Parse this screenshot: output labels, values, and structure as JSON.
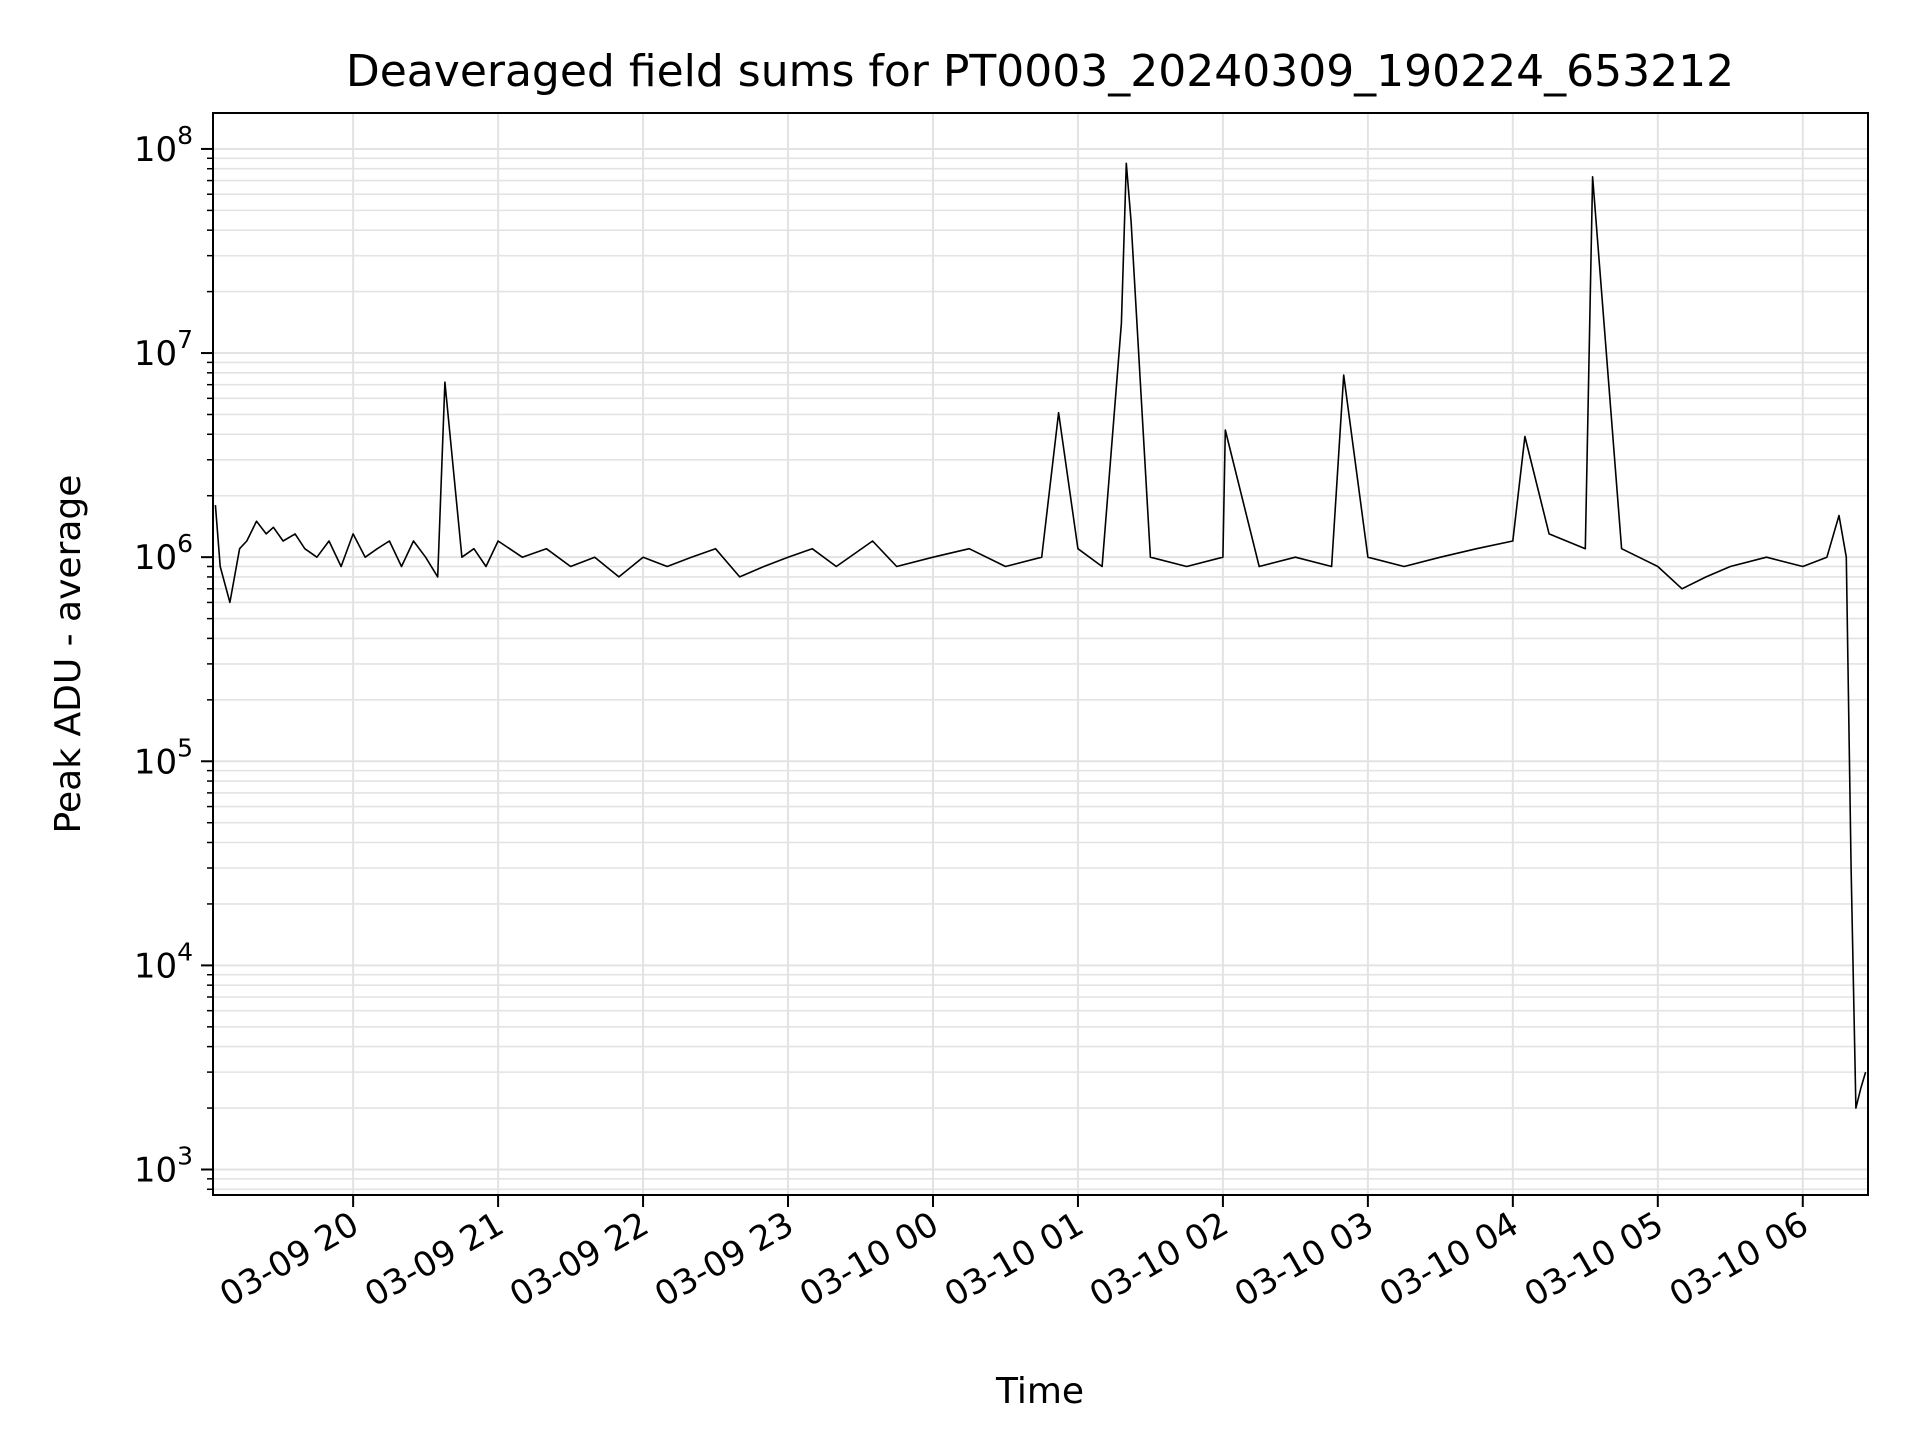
{
  "chart_data": {
    "type": "line",
    "title": "Deaveraged field sums for PT0003_20240309_190224_653212",
    "xlabel": "Time",
    "ylabel": "Peak ADU - average",
    "yscale": "log",
    "grid": true,
    "line_color": "#000000",
    "xlim": [
      "2024-03-09 19:02",
      "2024-03-10 06:27"
    ],
    "ylim": [
      750,
      150000000
    ],
    "x_ticks": [
      {
        "label": "03-09 20",
        "value": "2024-03-09 20:00"
      },
      {
        "label": "03-09 21",
        "value": "2024-03-09 21:00"
      },
      {
        "label": "03-09 22",
        "value": "2024-03-09 22:00"
      },
      {
        "label": "03-09 23",
        "value": "2024-03-09 23:00"
      },
      {
        "label": "03-10 00",
        "value": "2024-03-10 00:00"
      },
      {
        "label": "03-10 01",
        "value": "2024-03-10 01:00"
      },
      {
        "label": "03-10 02",
        "value": "2024-03-10 02:00"
      },
      {
        "label": "03-10 03",
        "value": "2024-03-10 03:00"
      },
      {
        "label": "03-10 04",
        "value": "2024-03-10 04:00"
      },
      {
        "label": "03-10 05",
        "value": "2024-03-10 05:00"
      },
      {
        "label": "03-10 06",
        "value": "2024-03-10 06:00"
      }
    ],
    "y_ticks": [
      {
        "base": "10",
        "exp": "3",
        "value": 1000
      },
      {
        "base": "10",
        "exp": "4",
        "value": 10000
      },
      {
        "base": "10",
        "exp": "5",
        "value": 100000
      },
      {
        "base": "10",
        "exp": "6",
        "value": 1000000
      },
      {
        "base": "10",
        "exp": "7",
        "value": 10000000
      },
      {
        "base": "10",
        "exp": "8",
        "value": 100000000
      }
    ],
    "series": [
      {
        "x": [
          "2024-03-09 19:03",
          "2024-03-09 19:05",
          "2024-03-09 19:09",
          "2024-03-09 19:13",
          "2024-03-09 19:16",
          "2024-03-09 19:20",
          "2024-03-09 19:24",
          "2024-03-09 19:27",
          "2024-03-09 19:31",
          "2024-03-09 19:36",
          "2024-03-09 19:40",
          "2024-03-09 19:45",
          "2024-03-09 19:50",
          "2024-03-09 19:55",
          "2024-03-09 20:00",
          "2024-03-09 20:05",
          "2024-03-09 20:10",
          "2024-03-09 20:15",
          "2024-03-09 20:20",
          "2024-03-09 20:25",
          "2024-03-09 20:30",
          "2024-03-09 20:35",
          "2024-03-09 20:38",
          "2024-03-09 20:45",
          "2024-03-09 20:50",
          "2024-03-09 20:55",
          "2024-03-09 21:00",
          "2024-03-09 21:10",
          "2024-03-09 21:20",
          "2024-03-09 21:30",
          "2024-03-09 21:40",
          "2024-03-09 21:50",
          "2024-03-09 22:00",
          "2024-03-09 22:10",
          "2024-03-09 22:20",
          "2024-03-09 22:30",
          "2024-03-09 22:40",
          "2024-03-09 22:50",
          "2024-03-09 23:00",
          "2024-03-09 23:10",
          "2024-03-09 23:20",
          "2024-03-09 23:35",
          "2024-03-09 23:45",
          "2024-03-10 00:00",
          "2024-03-10 00:15",
          "2024-03-10 00:30",
          "2024-03-10 00:45",
          "2024-03-10 00:52",
          "2024-03-10 01:00",
          "2024-03-10 01:10",
          "2024-03-10 01:18",
          "2024-03-10 01:20",
          "2024-03-10 01:22",
          "2024-03-10 01:30",
          "2024-03-10 01:45",
          "2024-03-10 02:00",
          "2024-03-10 02:01",
          "2024-03-10 02:15",
          "2024-03-10 02:30",
          "2024-03-10 02:45",
          "2024-03-10 02:50",
          "2024-03-10 03:00",
          "2024-03-10 03:15",
          "2024-03-10 03:30",
          "2024-03-10 03:45",
          "2024-03-10 04:00",
          "2024-03-10 04:05",
          "2024-03-10 04:15",
          "2024-03-10 04:30",
          "2024-03-10 04:33",
          "2024-03-10 04:45",
          "2024-03-10 05:00",
          "2024-03-10 05:10",
          "2024-03-10 05:20",
          "2024-03-10 05:30",
          "2024-03-10 05:45",
          "2024-03-10 06:00",
          "2024-03-10 06:10",
          "2024-03-10 06:15",
          "2024-03-10 06:18",
          "2024-03-10 06:20",
          "2024-03-10 06:22",
          "2024-03-10 06:24",
          "2024-03-10 06:26"
        ],
        "y": [
          1800000,
          900000,
          600000,
          1100000,
          1200000,
          1500000,
          1300000,
          1400000,
          1200000,
          1300000,
          1100000,
          1000000,
          1200000,
          900000,
          1300000,
          1000000,
          1100000,
          1200000,
          900000,
          1200000,
          1000000,
          800000,
          7200000,
          1000000,
          1100000,
          900000,
          1200000,
          1000000,
          1100000,
          900000,
          1000000,
          800000,
          1000000,
          900000,
          1000000,
          1100000,
          800000,
          900000,
          1000000,
          1100000,
          900000,
          1200000,
          900000,
          1000000,
          1100000,
          900000,
          1000000,
          5100000,
          1100000,
          900000,
          14000000,
          85000000,
          44000000,
          1000000,
          900000,
          1000000,
          4200000,
          900000,
          1000000,
          900000,
          7800000,
          1000000,
          900000,
          1000000,
          1100000,
          1200000,
          3900000,
          1300000,
          1100000,
          73000000,
          1100000,
          900000,
          700000,
          800000,
          900000,
          1000000,
          900000,
          1000000,
          1600000,
          1000000,
          30000,
          2000,
          2500,
          3000
        ]
      }
    ]
  }
}
